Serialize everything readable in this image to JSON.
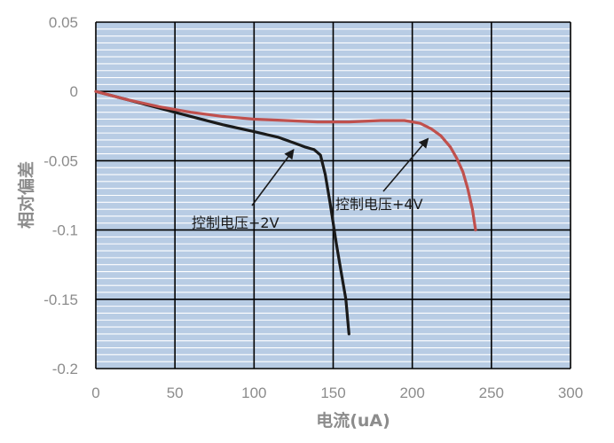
{
  "chart_data": {
    "type": "line",
    "xlabel": "电流(uA)",
    "ylabel": "相对偏差",
    "xlim": [
      0,
      300
    ],
    "ylim": [
      -0.2,
      0.05
    ],
    "x_ticks": [
      0,
      50,
      100,
      150,
      200,
      250,
      300
    ],
    "x_tick_labels": [
      "0",
      "50",
      "100",
      "150",
      "200",
      "250",
      "300"
    ],
    "y_ticks": [
      0.05,
      0,
      -0.05,
      -0.1,
      -0.15,
      -0.2
    ],
    "y_tick_labels": [
      "0.05",
      "0",
      "-0.05",
      "-0.1",
      "-0.15",
      "-0.2"
    ],
    "grid": true,
    "series": [
      {
        "color": "#1a1a1a",
        "x": [
          0,
          20,
          40,
          60,
          80,
          100,
          115,
          125,
          132,
          138,
          142,
          145,
          148,
          150,
          152,
          155,
          158,
          160
        ],
        "y": [
          0,
          -0.006,
          -0.012,
          -0.018,
          -0.024,
          -0.029,
          -0.033,
          -0.037,
          -0.04,
          -0.042,
          -0.046,
          -0.06,
          -0.08,
          -0.095,
          -0.11,
          -0.13,
          -0.15,
          -0.175
        ]
      },
      {
        "color": "#c0504d",
        "x": [
          0,
          20,
          40,
          60,
          80,
          100,
          120,
          140,
          160,
          180,
          195,
          205,
          212,
          218,
          224,
          228,
          232,
          235,
          238,
          240
        ],
        "y": [
          0,
          -0.006,
          -0.011,
          -0.015,
          -0.018,
          -0.02,
          -0.021,
          -0.022,
          -0.022,
          -0.021,
          -0.021,
          -0.023,
          -0.027,
          -0.032,
          -0.04,
          -0.048,
          -0.058,
          -0.07,
          -0.085,
          -0.1
        ]
      }
    ],
    "annotations": [
      {
        "text": "控制电压+2V",
        "arrow_to": {
          "x": 125,
          "y": -0.042
        }
      },
      {
        "text": "控制电压+4V",
        "arrow_to": {
          "x": 210,
          "y": -0.034
        }
      }
    ],
    "colors": {
      "plot_background": "#b8cce4",
      "minor_grid": "#ffffff",
      "major_grid": "#000000",
      "tick_text": "#8c8c8c"
    }
  }
}
